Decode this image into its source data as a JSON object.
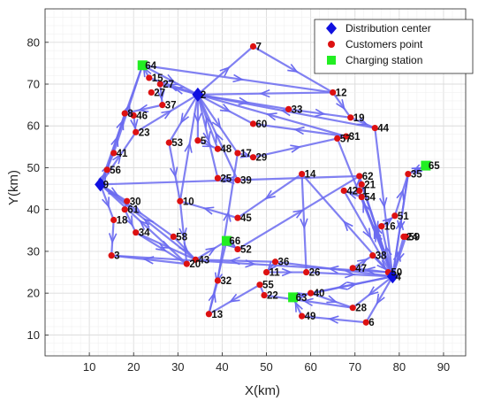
{
  "chart_data": {
    "type": "scatter",
    "xlabel": "X(km)",
    "ylabel": "Y(km)",
    "xlim": [
      0,
      95
    ],
    "ylim": [
      5,
      88
    ],
    "xticks": [
      10,
      20,
      30,
      40,
      50,
      60,
      70,
      80,
      90
    ],
    "yticks": [
      10,
      20,
      30,
      40,
      50,
      60,
      70,
      80
    ],
    "grid": true,
    "grid_minor": true,
    "legend_position": "top-right",
    "colors": {
      "route": "#6b6bf0",
      "depot": "#1010e0",
      "customer": "#dd1111",
      "station": "#22ee22"
    },
    "legend": [
      "Distribution center",
      "Customers point",
      "Charging station"
    ],
    "distribution_centers": [
      {
        "label": "2",
        "x": 34.5,
        "y": 67.5
      },
      {
        "label": "9",
        "x": 12.5,
        "y": 46
      },
      {
        "label": "4",
        "x": 78.5,
        "y": 24
      }
    ],
    "charging_stations": [
      {
        "label": "64",
        "x": 22,
        "y": 74.5
      },
      {
        "label": "65",
        "x": 86,
        "y": 50.5
      },
      {
        "label": "66",
        "x": 41,
        "y": 32.5
      },
      {
        "label": "63",
        "x": 56,
        "y": 19
      }
    ],
    "customers": [
      {
        "label": "3",
        "x": 15,
        "y": 29
      },
      {
        "label": "5",
        "x": 34.5,
        "y": 56.5
      },
      {
        "label": "6",
        "x": 72.5,
        "y": 13
      },
      {
        "label": "7",
        "x": 47,
        "y": 79
      },
      {
        "label": "8",
        "x": 18,
        "y": 63
      },
      {
        "label": "10",
        "x": 30.5,
        "y": 42
      },
      {
        "label": "11",
        "x": 50,
        "y": 25
      },
      {
        "label": "12",
        "x": 65,
        "y": 68
      },
      {
        "label": "13",
        "x": 37,
        "y": 15
      },
      {
        "label": "14",
        "x": 58,
        "y": 48.5
      },
      {
        "label": "15",
        "x": 23.5,
        "y": 71.5
      },
      {
        "label": "16",
        "x": 76,
        "y": 36
      },
      {
        "label": "17",
        "x": 43.5,
        "y": 53.5
      },
      {
        "label": "18",
        "x": 15.5,
        "y": 37.5
      },
      {
        "label": "19",
        "x": 69,
        "y": 62
      },
      {
        "label": "20",
        "x": 32,
        "y": 27
      },
      {
        "label": "21",
        "x": 71.5,
        "y": 46
      },
      {
        "label": "22",
        "x": 49.5,
        "y": 19.5
      },
      {
        "label": "23",
        "x": 20.5,
        "y": 58.5
      },
      {
        "label": "24",
        "x": 81,
        "y": 33.5
      },
      {
        "label": "25",
        "x": 39,
        "y": 47.5
      },
      {
        "label": "26",
        "x": 59,
        "y": 25
      },
      {
        "label": "27",
        "x": 26,
        "y": 70
      },
      {
        "label": "28",
        "x": 69.5,
        "y": 16.5
      },
      {
        "label": "29",
        "x": 47,
        "y": 52.5
      },
      {
        "label": "30",
        "x": 18.5,
        "y": 42
      },
      {
        "label": "31",
        "x": 68,
        "y": 57.5
      },
      {
        "label": "32",
        "x": 39,
        "y": 23
      },
      {
        "label": "33",
        "x": 55,
        "y": 64
      },
      {
        "label": "34",
        "x": 20.5,
        "y": 34.5
      },
      {
        "label": "35",
        "x": 82,
        "y": 48.5
      },
      {
        "label": "36",
        "x": 52,
        "y": 27.5
      },
      {
        "label": "37",
        "x": 26.5,
        "y": 65
      },
      {
        "label": "38",
        "x": 74,
        "y": 29
      },
      {
        "label": "39",
        "x": 43.5,
        "y": 47
      },
      {
        "label": "40",
        "x": 60,
        "y": 20
      },
      {
        "label": "41",
        "x": 15.5,
        "y": 53.5
      },
      {
        "label": "42",
        "x": 67.5,
        "y": 44.5
      },
      {
        "label": "43",
        "x": 34,
        "y": 28
      },
      {
        "label": "44",
        "x": 74.5,
        "y": 59.5
      },
      {
        "label": "45",
        "x": 43.5,
        "y": 38
      },
      {
        "label": "46",
        "x": 20,
        "y": 62.5
      },
      {
        "label": "47",
        "x": 69.5,
        "y": 26
      },
      {
        "label": "48",
        "x": 39,
        "y": 54.5
      },
      {
        "label": "49",
        "x": 58,
        "y": 14.5
      },
      {
        "label": "50",
        "x": 77.5,
        "y": 25
      },
      {
        "label": "51",
        "x": 79,
        "y": 38.5
      },
      {
        "label": "52",
        "x": 43.5,
        "y": 30.5
      },
      {
        "label": "53",
        "x": 28,
        "y": 56
      },
      {
        "label": "54",
        "x": 71.5,
        "y": 43
      },
      {
        "label": "55",
        "x": 48.5,
        "y": 22
      },
      {
        "label": "56",
        "x": 14,
        "y": 49.5
      },
      {
        "label": "57",
        "x": 66,
        "y": 57
      },
      {
        "label": "58",
        "x": 29,
        "y": 33.5
      },
      {
        "label": "59",
        "x": 81.5,
        "y": 33.5
      },
      {
        "label": "60",
        "x": 47,
        "y": 60.5
      },
      {
        "label": "61",
        "x": 18,
        "y": 40
      },
      {
        "label": "62",
        "x": 71,
        "y": 48
      },
      {
        "label": "1",
        "x": 71,
        "y": 44.5
      },
      {
        "label": "27b",
        "x": 24,
        "y": 68
      }
    ],
    "routes": [
      [
        "2",
        "7"
      ],
      [
        "7",
        "12"
      ],
      [
        "12",
        "2"
      ],
      [
        "2",
        "60"
      ],
      [
        "2",
        "33"
      ],
      [
        "33",
        "19"
      ],
      [
        "19",
        "44"
      ],
      [
        "44",
        "2"
      ],
      [
        "2",
        "15"
      ],
      [
        "15",
        "64"
      ],
      [
        "64",
        "12"
      ],
      [
        "2",
        "27"
      ],
      [
        "27",
        "37"
      ],
      [
        "37",
        "8"
      ],
      [
        "8",
        "46"
      ],
      [
        "46",
        "23"
      ],
      [
        "23",
        "2"
      ],
      [
        "2",
        "5"
      ],
      [
        "5",
        "48"
      ],
      [
        "48",
        "2"
      ],
      [
        "2",
        "53"
      ],
      [
        "53",
        "10"
      ],
      [
        "10",
        "2"
      ],
      [
        "2",
        "17"
      ],
      [
        "17",
        "29"
      ],
      [
        "29",
        "57"
      ],
      [
        "57",
        "31"
      ],
      [
        "31",
        "2"
      ],
      [
        "2",
        "25"
      ],
      [
        "25",
        "39"
      ],
      [
        "39",
        "2"
      ],
      [
        "9",
        "41"
      ],
      [
        "41",
        "64"
      ],
      [
        "9",
        "56"
      ],
      [
        "56",
        "8"
      ],
      [
        "9",
        "30"
      ],
      [
        "30",
        "61"
      ],
      [
        "61",
        "34"
      ],
      [
        "34",
        "20"
      ],
      [
        "20",
        "9"
      ],
      [
        "9",
        "18"
      ],
      [
        "18",
        "3"
      ],
      [
        "3",
        "50"
      ],
      [
        "9",
        "58"
      ],
      [
        "58",
        "43"
      ],
      [
        "43",
        "9"
      ],
      [
        "9",
        "23"
      ],
      [
        "9",
        "64"
      ],
      [
        "64",
        "2"
      ],
      [
        "34",
        "43"
      ],
      [
        "43",
        "66"
      ],
      [
        "66",
        "52"
      ],
      [
        "52",
        "62"
      ],
      [
        "62",
        "9"
      ],
      [
        "4",
        "6"
      ],
      [
        "6",
        "49"
      ],
      [
        "49",
        "63"
      ],
      [
        "63",
        "40"
      ],
      [
        "40",
        "4"
      ],
      [
        "4",
        "28"
      ],
      [
        "28",
        "22"
      ],
      [
        "22",
        "55"
      ],
      [
        "55",
        "13"
      ],
      [
        "13",
        "32"
      ],
      [
        "32",
        "17"
      ],
      [
        "4",
        "50"
      ],
      [
        "50",
        "47"
      ],
      [
        "47",
        "38"
      ],
      [
        "38",
        "4"
      ],
      [
        "4",
        "16"
      ],
      [
        "16",
        "51"
      ],
      [
        "51",
        "35"
      ],
      [
        "35",
        "4"
      ],
      [
        "4",
        "24"
      ],
      [
        "24",
        "59"
      ],
      [
        "59",
        "4"
      ],
      [
        "4",
        "21"
      ],
      [
        "21",
        "4"
      ],
      [
        "4",
        "54"
      ],
      [
        "54",
        "42"
      ],
      [
        "42",
        "4"
      ],
      [
        "4",
        "1"
      ],
      [
        "1",
        "62"
      ],
      [
        "62",
        "4"
      ],
      [
        "4",
        "14"
      ],
      [
        "14",
        "26"
      ],
      [
        "26",
        "4"
      ],
      [
        "4",
        "36"
      ],
      [
        "36",
        "11"
      ],
      [
        "11",
        "26"
      ],
      [
        "4",
        "63"
      ],
      [
        "44",
        "4"
      ],
      [
        "4",
        "35"
      ],
      [
        "35",
        "65"
      ],
      [
        "65",
        "35"
      ],
      [
        "14",
        "45"
      ],
      [
        "45",
        "10"
      ],
      [
        "10",
        "20"
      ],
      [
        "20",
        "3"
      ],
      [
        "36",
        "43"
      ],
      [
        "66",
        "13"
      ],
      [
        "12",
        "19"
      ],
      [
        "31",
        "60"
      ],
      [
        "4",
        "57"
      ],
      [
        "40",
        "28"
      ]
    ]
  }
}
